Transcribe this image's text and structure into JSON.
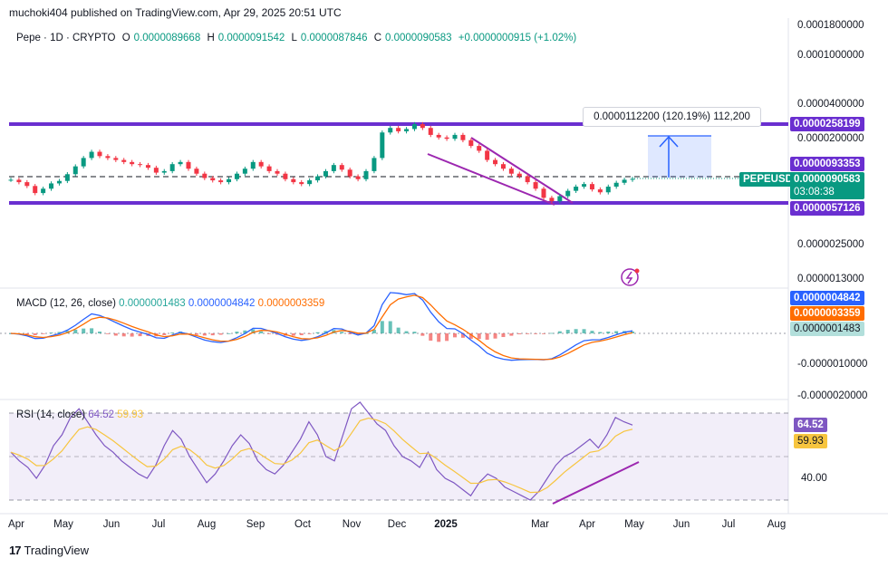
{
  "header": {
    "published": "muchoki404 published on TradingView.com, Apr 29, 2025 20:51 UTC"
  },
  "legend": {
    "symbol": "Pepe · 1D · CRYPTO",
    "o_label": "O",
    "o": "0.0000089668",
    "h_label": "H",
    "h": "0.0000091542",
    "l_label": "L",
    "l": "0.0000087846",
    "c_label": "C",
    "c": "0.0000090583",
    "change": "+0.0000000915 (+1.02%)"
  },
  "callout": "0.0000112200 (120.19%) 112,200",
  "price_axis": {
    "ticks": [
      "0.0001800000",
      "0.0001000000",
      "0.0000400000",
      "0.0000200000",
      "0.0000025000",
      "0.0000013000"
    ],
    "tags": {
      "resistance": "0.0000258199",
      "level": "0.0000093353",
      "symbol": "PEPEUSD",
      "price": "0.0000090583",
      "countdown": "03:08:38",
      "support": "0.0000057126"
    }
  },
  "macd": {
    "label": "MACD (12, 26, close)",
    "hist": "0.0000001483",
    "macd": "0.0000004842",
    "signal": "0.0000003359",
    "ticks": [
      "-0.0000010000",
      "-0.0000020000"
    ],
    "tags": [
      "0.0000004842",
      "0.0000003359",
      "0.0000001483"
    ]
  },
  "rsi": {
    "label": "RSI (14, close)",
    "value": "64.52",
    "ma": "59.93",
    "tick": "40.00",
    "tags": [
      "64.52",
      "59.93"
    ]
  },
  "time_axis": [
    "Apr",
    "May",
    "Jun",
    "Jul",
    "Aug",
    "Sep",
    "Oct",
    "Nov",
    "Dec",
    "2025",
    "Mar",
    "Apr",
    "May",
    "Jun",
    "Jul",
    "Aug"
  ],
  "brand": "TradingView",
  "colors": {
    "up": "#089981",
    "down": "#f23645",
    "purple": "#6a2fd0",
    "macd": "#2962ff",
    "signal": "#ff6d00",
    "rsi": "#7e57c2",
    "rsima": "#f7c53f"
  },
  "chart_data": {
    "type": "candlestick",
    "resistance": 2.58199e-05,
    "support": 5.7126e-06,
    "level": 9.3353e-06,
    "last": 9.0583e-06,
    "close_series": [
      8.9,
      8.5,
      7.9,
      6.9,
      7.5,
      8.3,
      8.7,
      9.9,
      11.5,
      13.5,
      15.2,
      14.0,
      13.5,
      13.0,
      12.5,
      12.0,
      11.8,
      11.2,
      10.2,
      10.5,
      12.0,
      12.5,
      11.0,
      10.0,
      9.2,
      8.8,
      8.5,
      9.0,
      10.0,
      11.0,
      12.5,
      11.5,
      10.5,
      10.0,
      9.0,
      8.5,
      8.2,
      8.8,
      9.5,
      10.5,
      11.8,
      10.8,
      9.5,
      9.0,
      10.5,
      13.5,
      22.0,
      24.0,
      22.5,
      23.5,
      25.8,
      24.0,
      21.0,
      20.0,
      19.5,
      21.0,
      19.0,
      17.0,
      15.5,
      13.0,
      12.0,
      11.0,
      10.0,
      9.5,
      8.5,
      7.5,
      6.3,
      5.9,
      6.5,
      7.2,
      7.8,
      8.2,
      7.4,
      7.0,
      7.8,
      8.4,
      8.9,
      9.06
    ],
    "rsi_series": [
      52,
      48,
      45,
      40,
      46,
      55,
      60,
      68,
      72,
      66,
      60,
      55,
      52,
      48,
      45,
      42,
      40,
      46,
      55,
      62,
      58,
      50,
      44,
      38,
      42,
      48,
      55,
      60,
      56,
      48,
      44,
      42,
      46,
      52,
      58,
      66,
      60,
      50,
      48,
      60,
      72,
      78,
      70,
      65,
      62,
      55,
      50,
      48,
      45,
      52,
      44,
      40,
      38,
      35,
      32,
      38,
      42,
      40,
      36,
      34,
      32,
      30,
      34,
      40,
      46,
      50,
      52,
      55,
      58,
      54,
      60,
      68,
      66,
      64.52
    ],
    "rsi_levels": [
      70,
      50,
      30
    ]
  }
}
